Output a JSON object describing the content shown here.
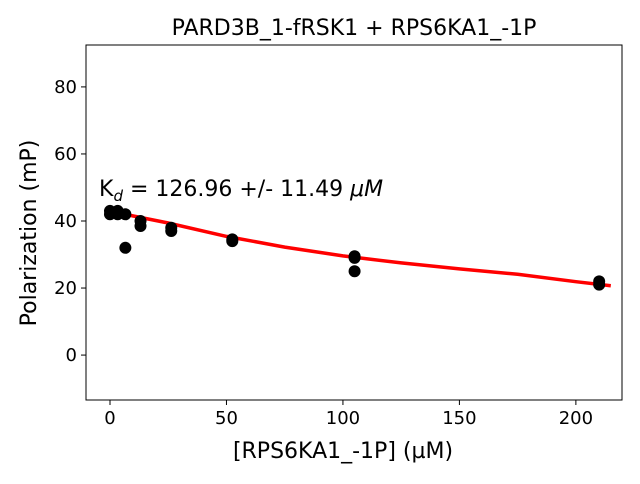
{
  "chart_data": {
    "type": "scatter",
    "title": "PARD3B_1-fRSK1 + RPS6KA1_-1P",
    "xlabel": "[RPS6KA1_-1P] (µM)",
    "ylabel": "Polarization (mP)",
    "xlim": [
      -10.3,
      219.8
    ],
    "ylim": [
      -13.4,
      92.5
    ],
    "xticks": [
      0,
      50,
      100,
      150,
      200
    ],
    "yticks": [
      0,
      20,
      40,
      60,
      80
    ],
    "grid": false,
    "annotation": {
      "prefix": "K",
      "subscript": "d",
      "text": " = 126.96 +/- 11.49 ",
      "unit": "μM"
    },
    "colors": {
      "points": "#000000",
      "fit": "#ff0000"
    },
    "series": [
      {
        "name": "data",
        "type": "scatter",
        "x": [
          0,
          0,
          3.3,
          3.3,
          6.6,
          6.6,
          13.1,
          13.1,
          26.3,
          26.3,
          52.5,
          52.5,
          105,
          105,
          105,
          210,
          210
        ],
        "y": [
          42,
          43,
          43,
          42,
          42,
          32,
          40,
          38.5,
          38,
          37,
          34.5,
          34,
          29.5,
          29,
          25,
          22,
          21
        ]
      },
      {
        "name": "fit",
        "type": "line",
        "x": [
          0,
          10,
          25,
          50,
          75,
          100,
          125,
          150,
          175,
          200,
          215
        ],
        "y": [
          43,
          41.5,
          39.4,
          35.4,
          32.2,
          29.6,
          27.5,
          25.7,
          24.1,
          21.9,
          20.7
        ]
      }
    ]
  }
}
